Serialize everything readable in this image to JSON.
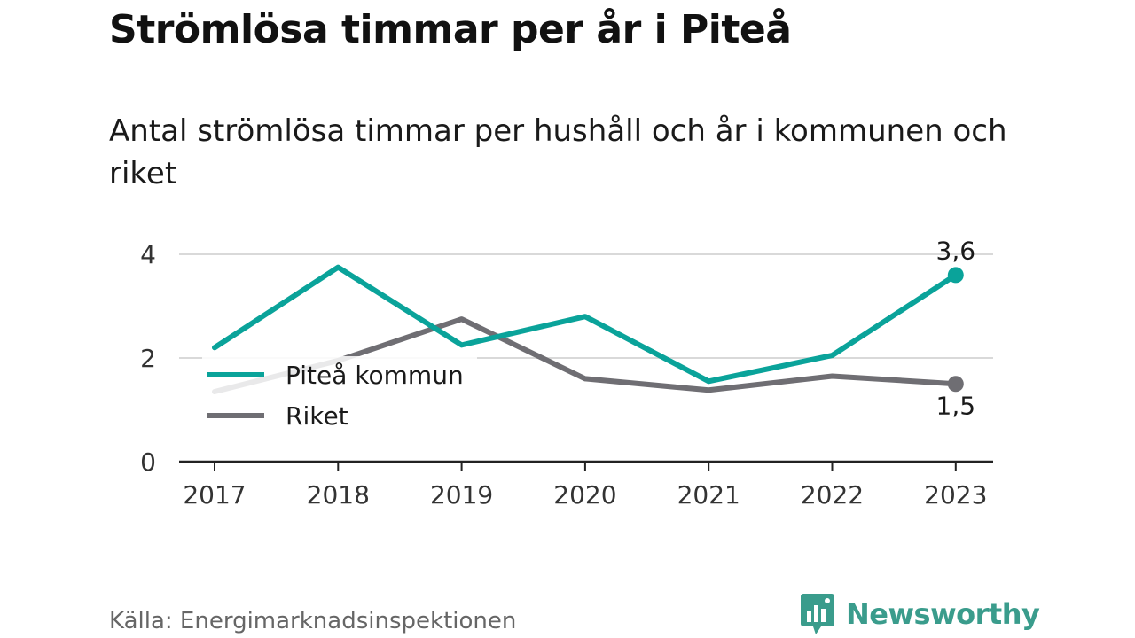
{
  "chart_data": {
    "type": "line",
    "title": "Strömlösa timmar per år i Piteå",
    "subtitle": "Antal strömlösa timmar per hushåll och år i kommunen och riket",
    "x": [
      "2017",
      "2018",
      "2019",
      "2020",
      "2021",
      "2022",
      "2023"
    ],
    "ylim": [
      0,
      4.0
    ],
    "yticks": [
      "0",
      "2",
      "4"
    ],
    "grid": true,
    "legend_position": "left-middle",
    "series": [
      {
        "name": "Piteå kommun",
        "color": "#0aa39a",
        "values": [
          2.2,
          3.75,
          2.25,
          2.8,
          1.55,
          2.05,
          3.6
        ],
        "end_label": "3,6"
      },
      {
        "name": "Riket",
        "color": "#6f6e73",
        "values": [
          1.35,
          1.95,
          2.75,
          1.6,
          1.38,
          1.65,
          1.5
        ],
        "end_label": "1,5"
      }
    ]
  },
  "footer": {
    "source": "Källa: Energimarknadsinspektionen",
    "brand": "Newsworthy",
    "brand_color": "#3a9c8c",
    "brand_icon": "bar-chart-speech-bubble-icon"
  }
}
